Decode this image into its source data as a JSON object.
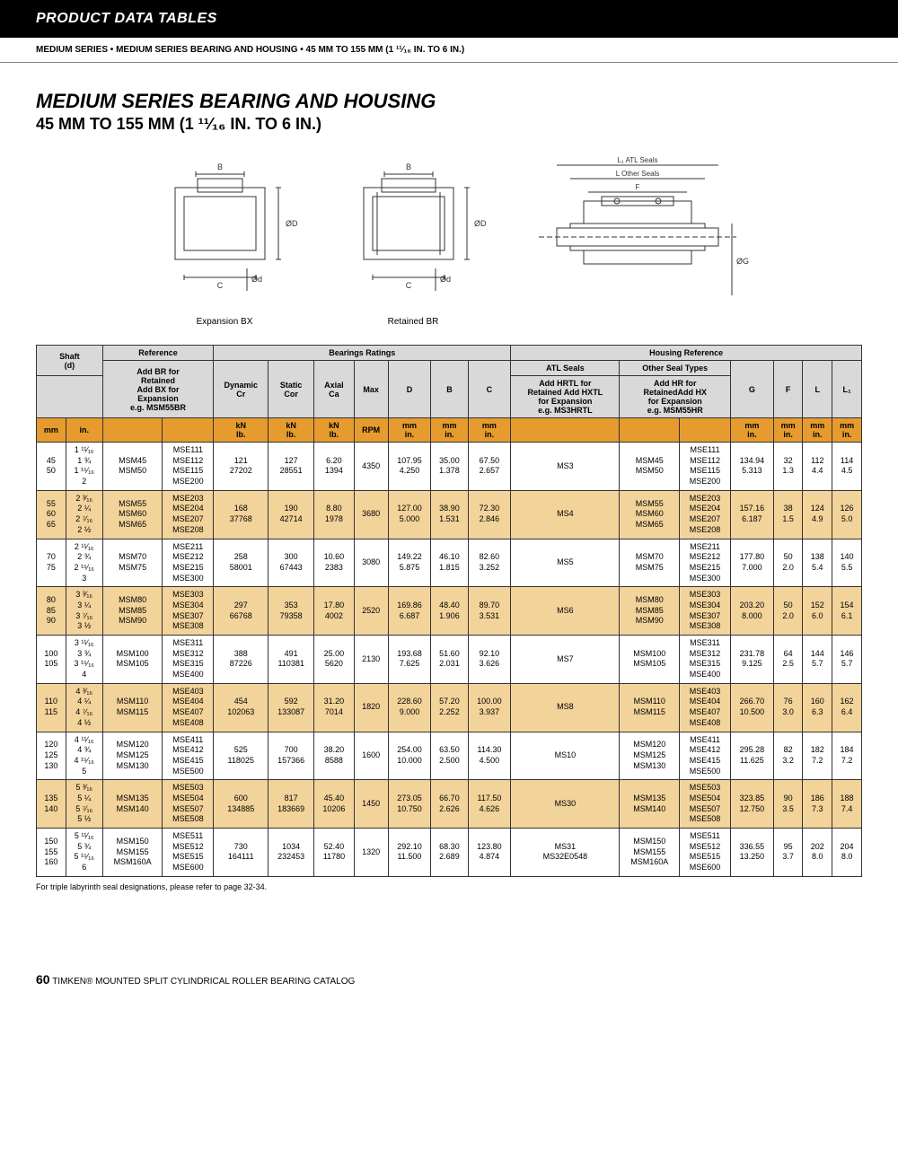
{
  "header": {
    "title": "PRODUCT DATA TABLES"
  },
  "breadcrumb": "MEDIUM SERIES • MEDIUM SERIES BEARING AND HOUSING • 45 MM TO 155 MM (1 ¹¹⁄₁₆ IN. TO 6 IN.)",
  "title": {
    "main": "MEDIUM SERIES BEARING AND HOUSING",
    "sub": "45 MM TO 155 MM (1 ¹¹⁄₁₆ IN. TO 6 IN.)"
  },
  "diagrams": {
    "bx_label": "Expansion BX",
    "br_label": "Retained  BR",
    "dim_B": "B",
    "dim_D": "ØD",
    "dim_d": "Ød",
    "dim_C": "C",
    "dim_L1": "L₁ ATL Seals",
    "dim_L": "L Other Seals",
    "dim_F": "F",
    "dim_G": "ØG"
  },
  "table": {
    "group_headers": {
      "reference": "Reference",
      "bearings": "Bearings Ratings",
      "housing": "Housing Reference"
    },
    "sub_headers": {
      "shaft": "Shaft\n(d)",
      "ref_add": "Add BR for\nRetained\nAdd BX for\nExpansion\ne.g. MSM55BR",
      "dyn": "Dynamic\nCr",
      "stat": "Static\nCor",
      "axial": "Axial\nCa",
      "max": "Max",
      "D": "D",
      "B": "B",
      "C": "C",
      "atl": "ATL Seals",
      "other": "Other Seal Types",
      "atl_add": "Add HRTL for\nRetained Add HXTL\nfor Expansion\ne.g. MS3HRTL",
      "other_add": "Add HR for\nRetainedAdd HX\nfor Expansion\ne.g. MSM55HR",
      "G": "G",
      "F": "F",
      "L": "L",
      "L1": "L₁"
    },
    "unit_row": [
      "mm",
      "in.",
      "",
      "",
      "kN\nlb.",
      "kN\nlb.",
      "kN\nlb.",
      "RPM",
      "mm\nin.",
      "mm\nin.",
      "mm\nin.",
      "",
      "",
      "",
      "mm\nin.",
      "mm\nin.",
      "mm\nin.",
      "mm\nin."
    ],
    "rows": [
      {
        "shaft_mm": "45\n50",
        "shaft_in": "1 ¹¹⁄₁₆\n1 ¾\n1 ¹⁵⁄₁₆\n2",
        "msm": "MSM45\nMSM50",
        "mse": "MSE111\nMSE112\nMSE115\nMSE200",
        "dyn": "121\n27202",
        "stat": "127\n28551",
        "axial": "6.20\n1394",
        "rpm": "4350",
        "D": "107.95\n4.250",
        "B": "35.00\n1.378",
        "C": "67.50\n2.657",
        "atl": "MS3",
        "other_msm": "MSM45\nMSM50",
        "other_mse": "MSE111\nMSE112\nMSE115\nMSE200",
        "G": "134.94\n5.313",
        "F": "32\n1.3",
        "L": "112\n4.4",
        "L1": "114\n4.5"
      },
      {
        "shaft_mm": "55\n60\n65",
        "shaft_in": "2 ³⁄₁₆\n2 ¼\n2 ⁷⁄₁₆\n2 ½",
        "msm": "MSM55\nMSM60\nMSM65",
        "mse": "MSE203\nMSE204\nMSE207\nMSE208",
        "dyn": "168\n37768",
        "stat": "190\n42714",
        "axial": "8.80\n1978",
        "rpm": "3680",
        "D": "127.00\n5.000",
        "B": "38.90\n1.531",
        "C": "72.30\n2.846",
        "atl": "MS4",
        "other_msm": "MSM55\nMSM60\nMSM65",
        "other_mse": "MSE203\nMSE204\nMSE207\nMSE208",
        "G": "157.16\n6.187",
        "F": "38\n1.5",
        "L": "124\n4.9",
        "L1": "126\n5.0"
      },
      {
        "shaft_mm": "70\n75",
        "shaft_in": "2 ¹¹⁄₁₆\n2 ¾\n2 ¹⁵⁄₁₆\n3",
        "msm": "MSM70\nMSM75",
        "mse": "MSE211\nMSE212\nMSE215\nMSE300",
        "dyn": "258\n58001",
        "stat": "300\n67443",
        "axial": "10.60\n2383",
        "rpm": "3080",
        "D": "149.22\n5.875",
        "B": "46.10\n1.815",
        "C": "82.60\n3.252",
        "atl": "MS5",
        "other_msm": "MSM70\nMSM75",
        "other_mse": "MSE211\nMSE212\nMSE215\nMSE300",
        "G": "177.80\n7.000",
        "F": "50\n2.0",
        "L": "138\n5.4",
        "L1": "140\n5.5"
      },
      {
        "shaft_mm": "80\n85\n90",
        "shaft_in": "3 ³⁄₁₆\n3 ¼\n3 ⁷⁄₁₆\n3 ½",
        "msm": "MSM80\nMSM85\nMSM90",
        "mse": "MSE303\nMSE304\nMSE307\nMSE308",
        "dyn": "297\n66768",
        "stat": "353\n79358",
        "axial": "17.80\n4002",
        "rpm": "2520",
        "D": "169.86\n6.687",
        "B": "48.40\n1.906",
        "C": "89.70\n3.531",
        "atl": "MS6",
        "other_msm": "MSM80\nMSM85\nMSM90",
        "other_mse": "MSE303\nMSE304\nMSE307\nMSE308",
        "G": "203.20\n8.000",
        "F": "50\n2.0",
        "L": "152\n6.0",
        "L1": "154\n6.1"
      },
      {
        "shaft_mm": "100\n105",
        "shaft_in": "3 ¹¹⁄₁₆\n3 ¾\n3 ¹⁵⁄₁₆\n4",
        "msm": "MSM100\nMSM105",
        "mse": "MSE311\nMSE312\nMSE315\nMSE400",
        "dyn": "388\n87226",
        "stat": "491\n110381",
        "axial": "25.00\n5620",
        "rpm": "2130",
        "D": "193.68\n7.625",
        "B": "51.60\n2.031",
        "C": "92.10\n3.626",
        "atl": "MS7",
        "other_msm": "MSM100\nMSM105",
        "other_mse": "MSE311\nMSE312\nMSE315\nMSE400",
        "G": "231.78\n9.125",
        "F": "64\n2.5",
        "L": "144\n5.7",
        "L1": "146\n5.7"
      },
      {
        "shaft_mm": "110\n115",
        "shaft_in": "4 ³⁄₁₆\n4 ¼\n4 ⁷⁄₁₆\n4 ½",
        "msm": "MSM110\nMSM115",
        "mse": "MSE403\nMSE404\nMSE407\nMSE408",
        "dyn": "454\n102063",
        "stat": "592\n133087",
        "axial": "31.20\n7014",
        "rpm": "1820",
        "D": "228.60\n9.000",
        "B": "57.20\n2.252",
        "C": "100.00\n3.937",
        "atl": "MS8",
        "other_msm": "MSM110\nMSM115",
        "other_mse": "MSE403\nMSE404\nMSE407\nMSE408",
        "G": "266.70\n10.500",
        "F": "76\n3.0",
        "L": "160\n6.3",
        "L1": "162\n6.4"
      },
      {
        "shaft_mm": "120\n125\n130",
        "shaft_in": "4 ¹¹⁄₁₆\n4 ¾\n4 ¹⁵⁄₁₆\n5",
        "msm": "MSM120\nMSM125\nMSM130",
        "mse": "MSE411\nMSE412\nMSE415\nMSE500",
        "dyn": "525\n118025",
        "stat": "700\n157366",
        "axial": "38.20\n8588",
        "rpm": "1600",
        "D": "254.00\n10.000",
        "B": "63.50\n2.500",
        "C": "114.30\n4.500",
        "atl": "MS10",
        "other_msm": "MSM120\nMSM125\nMSM130",
        "other_mse": "MSE411\nMSE412\nMSE415\nMSE500",
        "G": "295.28\n11.625",
        "F": "82\n3.2",
        "L": "182\n7.2",
        "L1": "184\n7.2"
      },
      {
        "shaft_mm": "135\n140",
        "shaft_in": "5 ³⁄₁₆\n5 ¼\n5 ⁷⁄₁₆\n5 ½",
        "msm": "MSM135\nMSM140",
        "mse": "MSE503\nMSE504\nMSE507\nMSE508",
        "dyn": "600\n134885",
        "stat": "817\n183669",
        "axial": "45.40\n10206",
        "rpm": "1450",
        "D": "273.05\n10.750",
        "B": "66.70\n2.626",
        "C": "117.50\n4.626",
        "atl": "MS30",
        "other_msm": "MSM135\nMSM140",
        "other_mse": "MSE503\nMSE504\nMSE507\nMSE508",
        "G": "323.85\n12.750",
        "F": "90\n3.5",
        "L": "186\n7.3",
        "L1": "188\n7.4"
      },
      {
        "shaft_mm": "150\n155\n160",
        "shaft_in": "5 ¹¹⁄₁₆\n5 ¾\n5 ¹⁵⁄₁₆\n6",
        "msm": "MSM150\nMSM155\nMSM160A",
        "mse": "MSE511\nMSE512\nMSE515\nMSE600",
        "dyn": "730\n164111",
        "stat": "1034\n232453",
        "axial": "52.40\n11780",
        "rpm": "1320",
        "D": "292.10\n11.500",
        "B": "68.30\n2.689",
        "C": "123.80\n4.874",
        "atl": "MS31\nMS32E0548",
        "other_msm": "MSM150\nMSM155\nMSM160A",
        "other_mse": "MSE511\nMSE512\nMSE515\nMSE600",
        "G": "336.55\n13.250",
        "F": "95\n3.7",
        "L": "202\n8.0",
        "L1": "204\n8.0"
      }
    ],
    "note": "For triple labyrinth seal designations, please refer to page 32-34."
  },
  "footer": {
    "page": "60",
    "catalog": "TIMKEN® MOUNTED SPLIT CYLINDRICAL ROLLER BEARING CATALOG"
  },
  "colors": {
    "header_bg": "#000000",
    "header_fg": "#ffffff",
    "thead_bg": "#d9d9d9",
    "unit_bg": "#e69b2e",
    "alt_bg": "#f2d39a",
    "border": "#333333"
  }
}
